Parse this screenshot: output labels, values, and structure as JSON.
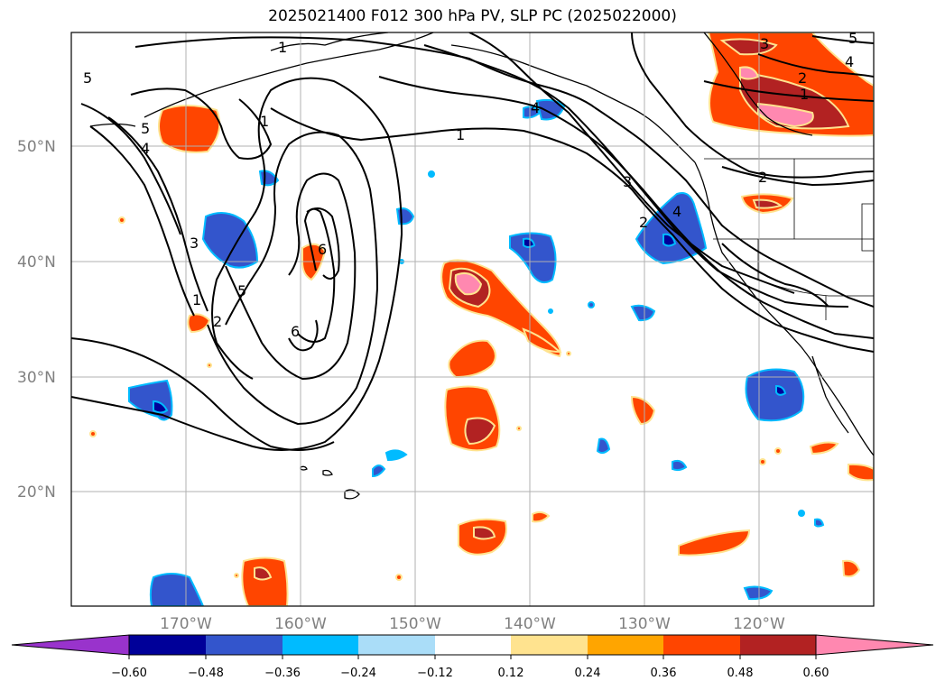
{
  "title": "2025021400 F012 300 hPa PV, SLP PC (2025022000)",
  "map": {
    "lat_labels": [
      "50°N",
      "40°N",
      "30°N",
      "20°N"
    ],
    "lon_labels": [
      "170°W",
      "160°W",
      "150°W",
      "140°W",
      "130°W",
      "120°W"
    ],
    "extent": {
      "lon": [
        -180,
        -110
      ],
      "lat": [
        10,
        60
      ]
    },
    "grid": true
  },
  "colorbar": {
    "ticks": [
      "−0.60",
      "−0.48",
      "−0.36",
      "−0.24",
      "−0.12",
      "0.12",
      "0.24",
      "0.36",
      "0.48",
      "0.60"
    ],
    "colors": [
      "#9933cc",
      "#000099",
      "#3355cc",
      "#00bbff",
      "#aaddf8",
      "#ffffff",
      "#ffe38f",
      "#ffa500",
      "#ff4500",
      "#b22222",
      "#ff88b0"
    ]
  },
  "contour_labels": [
    "1",
    "5",
    "5",
    "4",
    "1",
    "3",
    "1",
    "2",
    "5",
    "6",
    "6",
    "4",
    "1",
    "3",
    "2",
    "4",
    "3",
    "2",
    "1",
    "2",
    "5",
    "4"
  ]
}
